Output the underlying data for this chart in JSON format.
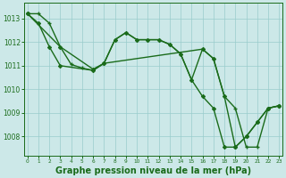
{
  "series": [
    {
      "x": [
        0,
        1,
        2,
        3,
        4,
        5,
        6,
        7,
        8,
        9,
        10,
        11,
        12,
        13,
        14,
        15,
        16,
        17,
        18,
        19,
        20,
        21,
        22,
        23
      ],
      "y": [
        1013.2,
        1013.2,
        1012.8,
        1011.8,
        1011.05,
        1010.9,
        1010.8,
        1011.1,
        1012.1,
        1012.4,
        1012.1,
        1012.1,
        1012.1,
        1011.9,
        1011.5,
        1010.4,
        1011.7,
        1011.3,
        1009.7,
        1009.2,
        1007.55,
        1007.55,
        1009.2,
        1009.3
      ],
      "color": "#1a6b1a",
      "marker": "+",
      "linewidth": 1.0,
      "markersize": 3.5,
      "markeredgewidth": 1.0
    },
    {
      "x": [
        0,
        1,
        2,
        3,
        6,
        7,
        8,
        9,
        10,
        11,
        12,
        13,
        14,
        15,
        16,
        17,
        18,
        19,
        20,
        21,
        22,
        23
      ],
      "y": [
        1013.2,
        1012.8,
        1011.8,
        1011.0,
        1010.8,
        1011.1,
        1012.1,
        1012.4,
        1012.1,
        1012.1,
        1012.1,
        1011.9,
        1011.5,
        1010.4,
        1009.7,
        1009.2,
        1007.55,
        1007.55,
        1008.0,
        1008.6,
        1009.2,
        1009.3
      ],
      "color": "#1a6b1a",
      "marker": "D",
      "linewidth": 1.0,
      "markersize": 2.2,
      "markeredgewidth": 0.7
    },
    {
      "x": [
        0,
        3,
        6,
        7,
        16,
        17,
        18,
        19,
        20,
        21,
        22,
        23
      ],
      "y": [
        1013.2,
        1011.8,
        1010.85,
        1011.1,
        1011.7,
        1011.3,
        1009.7,
        1007.55,
        1008.0,
        1008.6,
        1009.2,
        1009.3
      ],
      "color": "#1a6b1a",
      "marker": "D",
      "linewidth": 1.0,
      "markersize": 2.2,
      "markeredgewidth": 0.7
    }
  ],
  "ylim": [
    1007.2,
    1013.65
  ],
  "xlim": [
    -0.3,
    23.3
  ],
  "yticks": [
    1008,
    1009,
    1010,
    1011,
    1012,
    1013
  ],
  "xticks": [
    0,
    1,
    2,
    3,
    4,
    5,
    6,
    7,
    8,
    9,
    10,
    11,
    12,
    13,
    14,
    15,
    16,
    17,
    18,
    19,
    20,
    21,
    22,
    23
  ],
  "xlabel": "Graphe pression niveau de la mer (hPa)",
  "bg_color": "#cce8e8",
  "grid_color": "#99cccc",
  "line_color": "#1a6b1a",
  "tick_color": "#1a6b1a",
  "label_color": "#1a6b1a",
  "axis_fontsize": 5.5,
  "xlabel_fontsize": 7.0
}
